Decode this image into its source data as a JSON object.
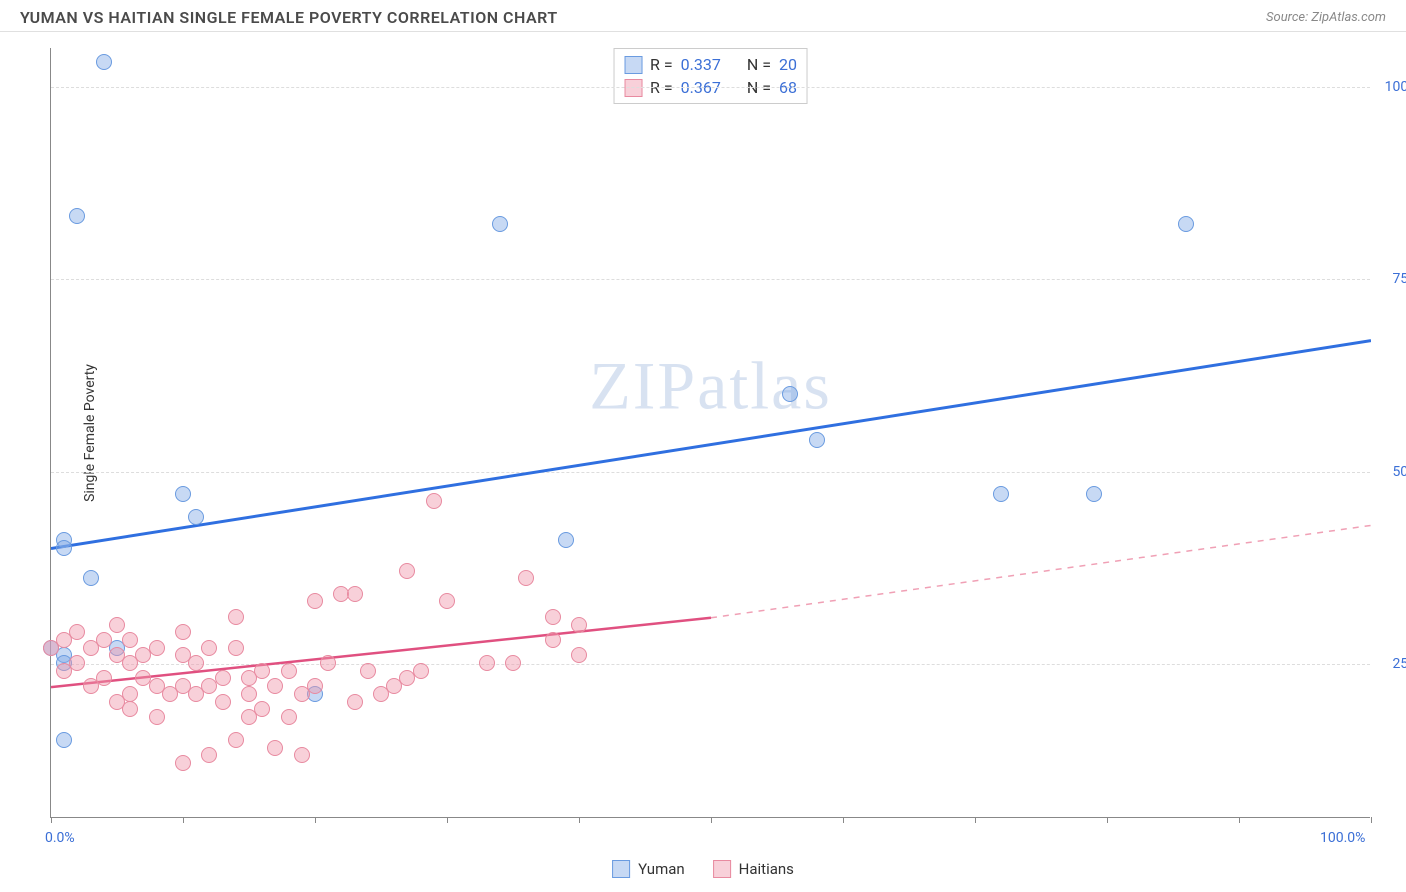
{
  "header": {
    "title": "YUMAN VS HAITIAN SINGLE FEMALE POVERTY CORRELATION CHART",
    "source_label": "Source: ZipAtlas.com"
  },
  "chart": {
    "type": "scatter",
    "y_axis_label": "Single Female Poverty",
    "watermark": "ZIPatlas",
    "xlim": [
      0,
      100
    ],
    "ylim": [
      5,
      105
    ],
    "x_ticks": [
      0,
      10,
      20,
      30,
      40,
      50,
      60,
      70,
      80,
      90,
      100
    ],
    "x_tick_labels": {
      "0": "0.0%",
      "100": "100.0%"
    },
    "y_gridlines": [
      25,
      50,
      75,
      100
    ],
    "y_tick_labels": {
      "25": "25.0%",
      "50": "50.0%",
      "75": "75.0%",
      "100": "100.0%"
    },
    "background_color": "#ffffff",
    "grid_color": "#dddddd",
    "axis_color": "#888888",
    "tick_label_color": "#3b6fd6",
    "series": [
      {
        "name": "Yuman",
        "color_fill": "rgba(130,170,230,0.45)",
        "color_stroke": "#6a9be0",
        "marker_radius": 8,
        "trend": {
          "x1": 0,
          "y1": 40,
          "x2": 100,
          "y2": 67,
          "color": "#2f6fe0",
          "width": 3,
          "dash": false
        },
        "points": [
          [
            4,
            103
          ],
          [
            2,
            83
          ],
          [
            34,
            82
          ],
          [
            86,
            82
          ],
          [
            1,
            41
          ],
          [
            1,
            40
          ],
          [
            3,
            36
          ],
          [
            10,
            47
          ],
          [
            11,
            44
          ],
          [
            56,
            60
          ],
          [
            58,
            54
          ],
          [
            39,
            41
          ],
          [
            1,
            26
          ],
          [
            1,
            25
          ],
          [
            20,
            21
          ],
          [
            72,
            47
          ],
          [
            79,
            47
          ],
          [
            1,
            15
          ],
          [
            0,
            27
          ],
          [
            5,
            27
          ]
        ]
      },
      {
        "name": "Haitians",
        "color_fill": "rgba(240,150,170,0.45)",
        "color_stroke": "#e88aa0",
        "marker_radius": 8,
        "trend": {
          "x1": 0,
          "y1": 22,
          "x2": 50,
          "y2": 31,
          "color": "#e05080",
          "width": 2.5,
          "dash": false
        },
        "trend_ext": {
          "x1": 50,
          "y1": 31,
          "x2": 100,
          "y2": 43,
          "color": "#f0a0b5",
          "width": 1.5,
          "dash": true
        },
        "points": [
          [
            29,
            46
          ],
          [
            27,
            37
          ],
          [
            22,
            34
          ],
          [
            20,
            33
          ],
          [
            23,
            34
          ],
          [
            30,
            33
          ],
          [
            36,
            36
          ],
          [
            38,
            31
          ],
          [
            40,
            30
          ],
          [
            14,
            31
          ],
          [
            10,
            29
          ],
          [
            5,
            30
          ],
          [
            2,
            29
          ],
          [
            3,
            27
          ],
          [
            1,
            28
          ],
          [
            0,
            27
          ],
          [
            4,
            28
          ],
          [
            6,
            28
          ],
          [
            8,
            27
          ],
          [
            7,
            26
          ],
          [
            2,
            25
          ],
          [
            1,
            24
          ],
          [
            5,
            26
          ],
          [
            6,
            25
          ],
          [
            10,
            26
          ],
          [
            11,
            25
          ],
          [
            12,
            27
          ],
          [
            14,
            27
          ],
          [
            13,
            23
          ],
          [
            15,
            23
          ],
          [
            16,
            24
          ],
          [
            18,
            24
          ],
          [
            10,
            22
          ],
          [
            12,
            22
          ],
          [
            8,
            22
          ],
          [
            7,
            23
          ],
          [
            4,
            23
          ],
          [
            3,
            22
          ],
          [
            6,
            21
          ],
          [
            5,
            20
          ],
          [
            9,
            21
          ],
          [
            11,
            21
          ],
          [
            13,
            20
          ],
          [
            15,
            21
          ],
          [
            17,
            22
          ],
          [
            19,
            21
          ],
          [
            20,
            22
          ],
          [
            21,
            25
          ],
          [
            24,
            24
          ],
          [
            26,
            22
          ],
          [
            28,
            24
          ],
          [
            33,
            25
          ],
          [
            35,
            25
          ],
          [
            38,
            28
          ],
          [
            40,
            26
          ],
          [
            27,
            23
          ],
          [
            23,
            20
          ],
          [
            16,
            19
          ],
          [
            15,
            18
          ],
          [
            18,
            18
          ],
          [
            14,
            15
          ],
          [
            17,
            14
          ],
          [
            12,
            13
          ],
          [
            10,
            12
          ],
          [
            19,
            13
          ],
          [
            8,
            18
          ],
          [
            6,
            19
          ],
          [
            25,
            21
          ]
        ]
      }
    ],
    "stats_legend": [
      {
        "swatch_fill": "rgba(130,170,230,0.45)",
        "swatch_stroke": "#6a9be0",
        "r_label": "R =",
        "r_val": "0.337",
        "n_label": "N =",
        "n_val": "20"
      },
      {
        "swatch_fill": "rgba(240,150,170,0.45)",
        "swatch_stroke": "#e88aa0",
        "r_label": "R =",
        "r_val": "0.367",
        "n_label": "N =",
        "n_val": "68"
      }
    ],
    "bottom_legend": [
      {
        "swatch_fill": "rgba(130,170,230,0.45)",
        "swatch_stroke": "#6a9be0",
        "label": "Yuman"
      },
      {
        "swatch_fill": "rgba(240,150,170,0.45)",
        "swatch_stroke": "#e88aa0",
        "label": "Haitians"
      }
    ]
  }
}
